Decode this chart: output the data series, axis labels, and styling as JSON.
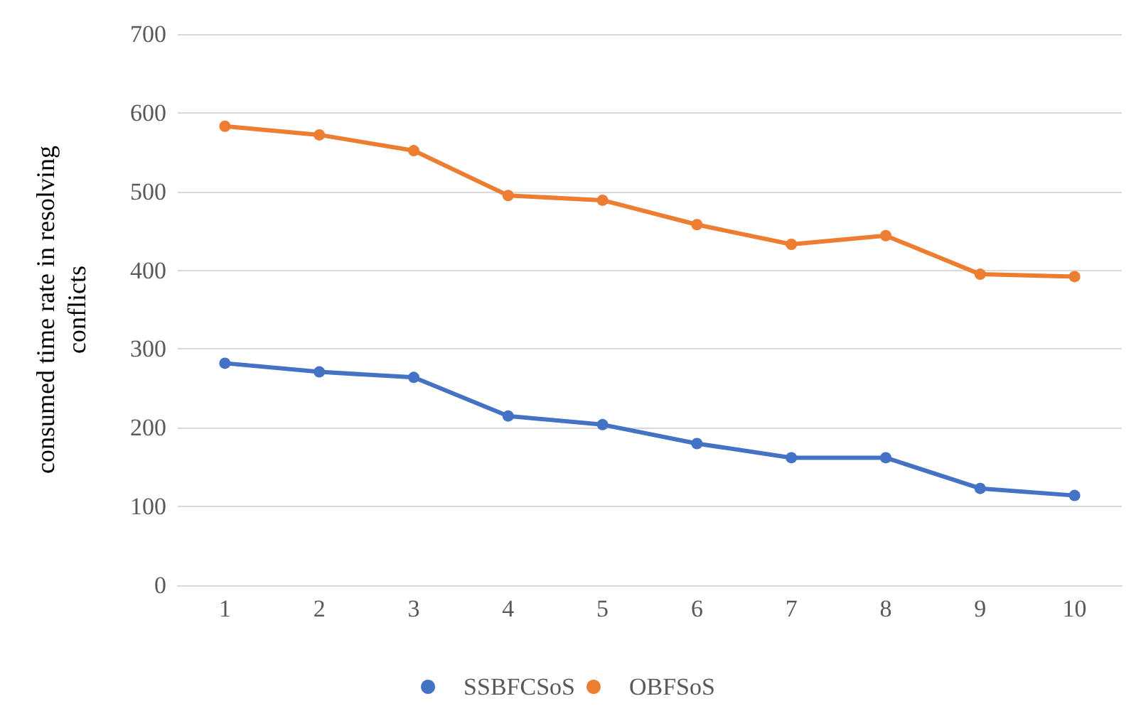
{
  "chart_data": {
    "type": "line",
    "ylabel": "consumed time rate in resolving\nconflicts",
    "categories": [
      "1",
      "2",
      "3",
      "4",
      "5",
      "6",
      "7",
      "8",
      "9",
      "10"
    ],
    "series": [
      {
        "name": "SSBFCSoS",
        "color": "#4472c4",
        "values": [
          282,
          271,
          264,
          215,
          204,
          180,
          162,
          162,
          123,
          114
        ]
      },
      {
        "name": "OBFSoS",
        "color": "#ed7d31",
        "values": [
          583,
          572,
          552,
          495,
          489,
          458,
          433,
          444,
          395,
          392
        ]
      }
    ],
    "ylim": [
      0,
      700
    ],
    "yticks": [
      0,
      100,
      200,
      300,
      400,
      500,
      600,
      700
    ],
    "grid": "y",
    "legend": "bottom",
    "marker": "circle",
    "line_style": "solid"
  }
}
